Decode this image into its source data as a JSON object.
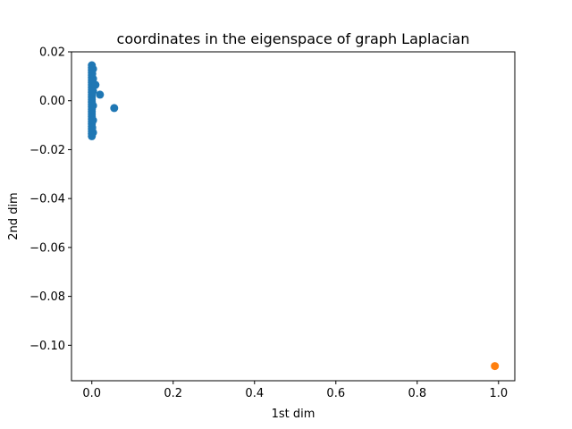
{
  "chart_data": {
    "type": "scatter",
    "title": "coordinates in the eigenspace of graph Laplacian",
    "xlabel": "1st dim",
    "ylabel": "2nd dim",
    "xlim": [
      -0.05,
      1.04
    ],
    "ylim": [
      -0.1145,
      0.02
    ],
    "xticks": [
      0.0,
      0.2,
      0.4,
      0.6,
      0.8,
      1.0
    ],
    "yticks": [
      0.02,
      0.0,
      -0.02,
      -0.04,
      -0.06,
      -0.08,
      -0.1
    ],
    "xtick_labels": [
      "0.0",
      "0.2",
      "0.4",
      "0.6",
      "0.8",
      "1.0"
    ],
    "ytick_labels": [
      "0.02",
      "0.00",
      "−0.02",
      "−0.04",
      "−0.06",
      "−0.08",
      "−0.10"
    ],
    "grid": false,
    "series": [
      {
        "color": "#1f77b4",
        "points": [
          [
            0.0,
            0.0145
          ],
          [
            0.0,
            0.0135
          ],
          [
            0.0,
            0.0125
          ],
          [
            0.0,
            0.0115
          ],
          [
            0.0,
            0.0105
          ],
          [
            0.0,
            0.0095
          ],
          [
            0.0,
            0.0085
          ],
          [
            0.0,
            0.0075
          ],
          [
            0.0,
            0.0065
          ],
          [
            0.0,
            0.0055
          ],
          [
            0.0,
            0.0045
          ],
          [
            0.0,
            0.0035
          ],
          [
            0.0,
            0.0025
          ],
          [
            0.0,
            0.0015
          ],
          [
            0.0,
            0.0005
          ],
          [
            0.0,
            -0.0005
          ],
          [
            0.0,
            -0.0015
          ],
          [
            0.0,
            -0.0025
          ],
          [
            0.0,
            -0.0035
          ],
          [
            0.0,
            -0.0045
          ],
          [
            0.0,
            -0.0055
          ],
          [
            0.0,
            -0.0065
          ],
          [
            0.0,
            -0.0075
          ],
          [
            0.0,
            -0.0085
          ],
          [
            0.0,
            -0.0095
          ],
          [
            0.0,
            -0.0105
          ],
          [
            0.0,
            -0.0115
          ],
          [
            0.0,
            -0.0125
          ],
          [
            0.0,
            -0.0135
          ],
          [
            0.0,
            -0.0145
          ],
          [
            0.003,
            0.013
          ],
          [
            0.003,
            0.009
          ],
          [
            0.003,
            0.004
          ],
          [
            0.003,
            -0.002
          ],
          [
            0.003,
            -0.008
          ],
          [
            0.003,
            -0.013
          ],
          [
            0.001,
            0.011
          ],
          [
            0.001,
            -0.011
          ],
          [
            0.009,
            0.0065
          ],
          [
            0.02,
            0.0025
          ],
          [
            0.055,
            -0.003
          ]
        ]
      },
      {
        "color": "#ff7f0e",
        "points": [
          [
            0.991,
            -0.1085
          ]
        ]
      }
    ]
  }
}
